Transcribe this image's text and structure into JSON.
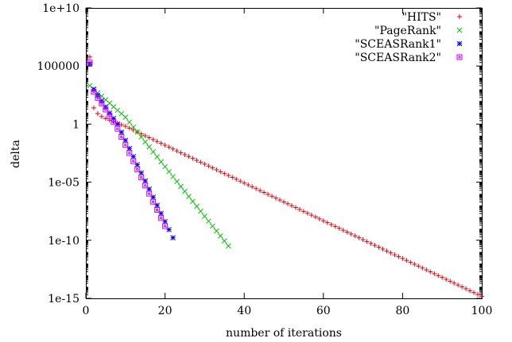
{
  "chart_data": {
    "type": "scatter",
    "xlabel": "number of iterations",
    "ylabel": "delta",
    "xlim": [
      0,
      100
    ],
    "ylim": [
      1e-15,
      10000000000.0
    ],
    "yscale": "log",
    "grid": false,
    "legend_position": "top-right",
    "x_ticks": [
      0,
      20,
      40,
      60,
      80,
      100
    ],
    "x_tick_labels": [
      "0",
      "20",
      "40",
      "60",
      "80",
      "100"
    ],
    "y_ticks": [
      1e-15,
      1e-10,
      1e-05,
      1,
      100000,
      10000000000.0
    ],
    "y_tick_labels": [
      "1e-15",
      "1e-10",
      "1e-05",
      "1",
      "100000",
      "1e+10"
    ],
    "series": [
      {
        "name": "\"HITS\"",
        "color": "#e8000b",
        "marker": "plus",
        "x": [
          1,
          2,
          3,
          4,
          5,
          6,
          7,
          8,
          9,
          10,
          11,
          12,
          13,
          14,
          15,
          16,
          17,
          18,
          19,
          20,
          21,
          22,
          23,
          24,
          25,
          26,
          27,
          28,
          29,
          30,
          31,
          32,
          33,
          34,
          35,
          36,
          37,
          38,
          39,
          40,
          41,
          42,
          43,
          44,
          45,
          46,
          47,
          48,
          49,
          50,
          51,
          52,
          53,
          54,
          55,
          56,
          57,
          58,
          59,
          60,
          61,
          62,
          63,
          64,
          65,
          66,
          67,
          68,
          69,
          70,
          71,
          72,
          73,
          74,
          75,
          76,
          77,
          78,
          79,
          80,
          81,
          82,
          83,
          84,
          85,
          86,
          87,
          88,
          89,
          90,
          91,
          92,
          93,
          94,
          95,
          96,
          97,
          98,
          99,
          100
        ],
        "y": [
          600000,
          25,
          8,
          4.5,
          3,
          2.2,
          1.6,
          1.2,
          0.88,
          0.65,
          0.45,
          0.31,
          0.21,
          0.144,
          0.099,
          0.068,
          0.0468,
          0.0322,
          0.0221,
          0.0152,
          0.0105,
          0.0072,
          0.00495,
          0.0034,
          0.00234,
          0.00161,
          0.00111,
          0.000762,
          0.000524,
          0.00036,
          0.000248,
          0.00017,
          0.000117,
          8.05e-05,
          5.54e-05,
          3.81e-05,
          2.62e-05,
          1.8e-05,
          1.24e-05,
          8.52e-06,
          5.86e-06,
          4.03e-06,
          2.77e-06,
          1.9e-06,
          1.31e-06,
          9e-07,
          6.19e-07,
          4.26e-07,
          2.93e-07,
          2.01e-07,
          1.39e-07,
          9.52e-08,
          6.55e-08,
          4.5e-08,
          3.1e-08,
          2.13e-08,
          1.46e-08,
          1.01e-08,
          6.93e-09,
          4.77e-09,
          3.28e-09,
          2.25e-09,
          1.55e-09,
          1.07e-09,
          7.33e-10,
          5.04e-10,
          3.47e-10,
          2.38e-10,
          1.64e-10,
          1.13e-10,
          7.76e-11,
          5.34e-11,
          3.67e-11,
          2.52e-11,
          1.74e-11,
          1.19e-11,
          8.2e-12,
          5.64e-12,
          3.88e-12,
          2.67e-12,
          1.84e-12,
          1.26e-12,
          8.68e-13,
          5.97e-13,
          4.1e-13,
          2.82e-13,
          1.94e-13,
          1.34e-13,
          9.19e-14,
          6.32e-14,
          4.34e-14,
          2.99e-14,
          2.05e-14,
          1.41e-14,
          9.72e-15,
          6.68e-15,
          4.6e-15,
          3.16e-15,
          2.17e-15,
          1.5e-15
        ]
      },
      {
        "name": "\"PageRank\"",
        "color": "#00c000",
        "marker": "cross",
        "x": [
          1,
          2,
          3,
          4,
          5,
          6,
          7,
          8,
          9,
          10,
          11,
          12,
          13,
          14,
          15,
          16,
          17,
          18,
          19,
          20,
          21,
          22,
          23,
          24,
          25,
          26,
          27,
          28,
          29,
          30,
          31,
          32,
          33,
          34,
          35,
          36
        ],
        "y": [
          2000,
          1000,
          500,
          250,
          125,
          62.5,
          31.2,
          15.6,
          7.81,
          3.91,
          1.47,
          0.551,
          0.207,
          0.0776,
          0.0291,
          0.0109,
          0.00409,
          0.00153,
          0.000575,
          0.000216,
          8.08e-05,
          3.03e-05,
          1.14e-05,
          4.26e-06,
          1.6e-06,
          5.99e-07,
          2.25e-07,
          8.42e-08,
          3.16e-08,
          1.18e-08,
          4.44e-09,
          1.66e-09,
          6.24e-10,
          2.34e-10,
          8.77e-11,
          3.29e-11
        ]
      },
      {
        "name": "\"SCEASRank1\"",
        "color": "#0000ff",
        "marker": "star",
        "x": [
          1,
          2,
          3,
          4,
          5,
          6,
          7,
          8,
          9,
          10,
          11,
          12,
          13,
          14,
          15,
          16,
          17,
          18,
          19,
          20,
          21,
          22
        ],
        "y": [
          150000,
          1000,
          300,
          100,
          30,
          9,
          3,
          1,
          0.2,
          0.04,
          0.008,
          0.0016,
          0.00032,
          6.4e-05,
          1.28e-05,
          2.56e-06,
          5.12e-07,
          1.02e-07,
          2.05e-08,
          4.1e-09,
          8.19e-10,
          1.64e-10
        ]
      },
      {
        "name": "\"SCEASRank2\"",
        "color": "#c000ff",
        "marker": "square",
        "x": [
          1,
          2,
          3,
          4,
          5,
          6,
          7,
          8,
          9,
          10,
          11,
          12,
          13,
          14,
          15,
          16,
          17,
          18,
          19,
          20
        ],
        "y": [
          200000,
          600,
          180,
          60,
          18,
          5,
          1.5,
          0.4,
          0.08,
          0.016,
          0.0032,
          0.00064,
          0.000128,
          2.56e-05,
          5.12e-06,
          1.02e-06,
          2.05e-07,
          4.1e-08,
          8.19e-09,
          1.64e-09
        ]
      }
    ]
  }
}
